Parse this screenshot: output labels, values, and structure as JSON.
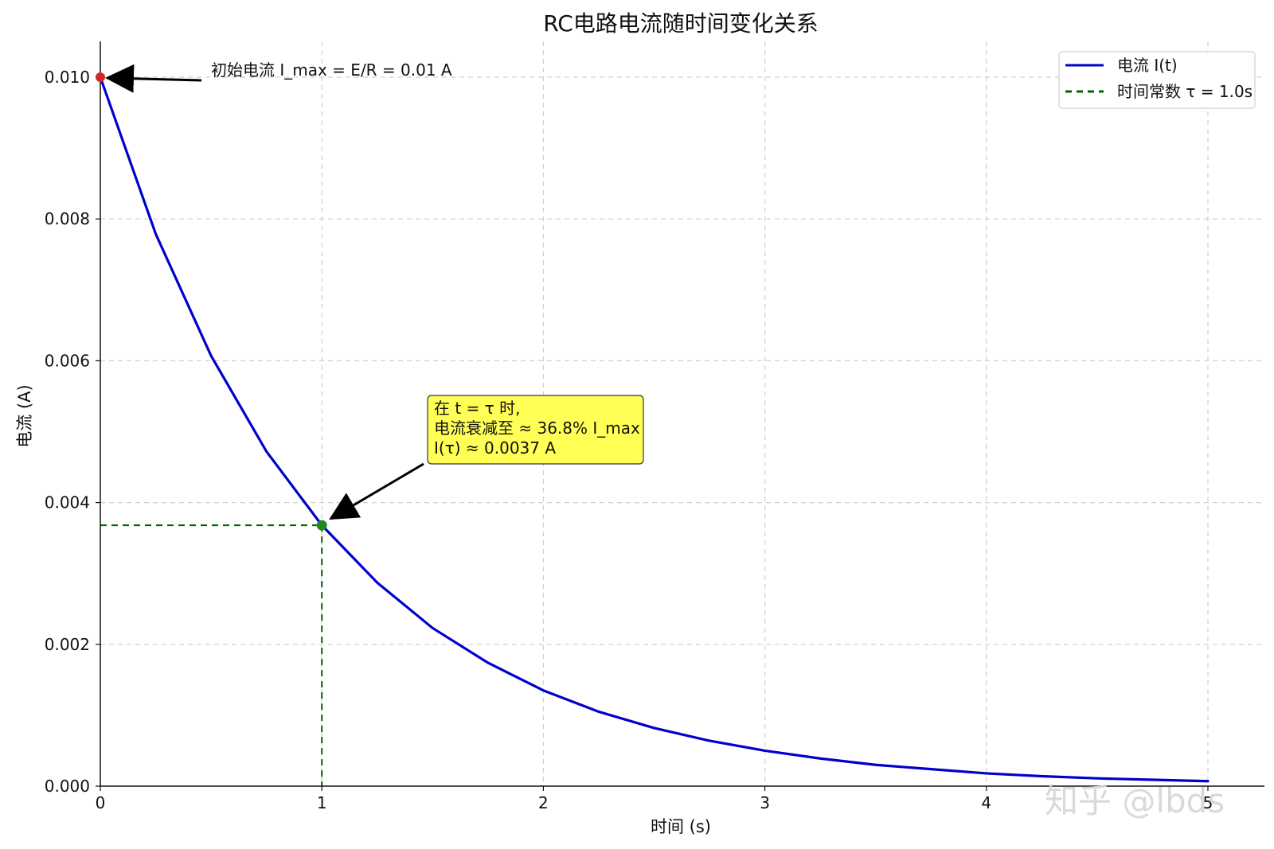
{
  "chart_data": {
    "type": "line",
    "title": "RC电路电流随时间变化关系",
    "xlabel": "时间 (s)",
    "ylabel": "电流 (A)",
    "xlim": [
      0,
      5
    ],
    "ylim": [
      0,
      0.0105
    ],
    "xticks": [
      0,
      1,
      2,
      3,
      4,
      5
    ],
    "xtick_labels": [
      "0",
      "1",
      "2",
      "3",
      "4",
      "5"
    ],
    "yticks": [
      0.0,
      0.002,
      0.004,
      0.006,
      0.008,
      0.01
    ],
    "ytick_labels": [
      "0.000",
      "0.002",
      "0.004",
      "0.006",
      "0.008",
      "0.010"
    ],
    "grid": true,
    "legend": {
      "placement": "top-right",
      "entries": [
        {
          "label": "电流 I(t)",
          "color": "#0000cc",
          "style": "solid"
        },
        {
          "label": "时间常数 τ = 1.0s",
          "color": "#006400",
          "style": "dashed"
        }
      ]
    },
    "series": [
      {
        "name": "电流 I(t)",
        "color": "#0000cc",
        "x": [
          0,
          0.25,
          0.5,
          0.75,
          1,
          1.25,
          1.5,
          1.75,
          2,
          2.25,
          2.5,
          2.75,
          3,
          3.25,
          3.5,
          3.75,
          4,
          4.25,
          4.5,
          4.75,
          5
        ],
        "y": [
          0.01,
          0.00779,
          0.00607,
          0.00472,
          0.00368,
          0.00287,
          0.00223,
          0.00174,
          0.00135,
          0.00105,
          0.00082,
          0.00064,
          0.0005,
          0.00039,
          0.0003,
          0.00024,
          0.00018,
          0.00014,
          0.00011,
          9e-05,
          7e-05
        ]
      }
    ],
    "reference_lines": {
      "color": "#006400",
      "x": 1,
      "y": 0.00368
    },
    "points": [
      {
        "name": "start-point",
        "x": 0,
        "y": 0.01,
        "color": "#d62728"
      },
      {
        "name": "tau-point",
        "x": 1,
        "y": 0.00368,
        "color": "#1f8b1f"
      }
    ],
    "annotations": {
      "start": {
        "text": "初始电流 I_max = E/R = 0.01 A",
        "target_x": 0,
        "target_y": 0.01
      },
      "tau": {
        "lines": [
          "在 t = τ 时,",
          "电流衰减至 ≈ 36.8% I_max",
          " I(τ) ≈ 0.0037 A"
        ],
        "target_x": 1,
        "target_y": 0.00368,
        "box_fill": "#ffff55",
        "box_stroke": "#333333"
      }
    },
    "watermark": "知乎 @lbds"
  }
}
